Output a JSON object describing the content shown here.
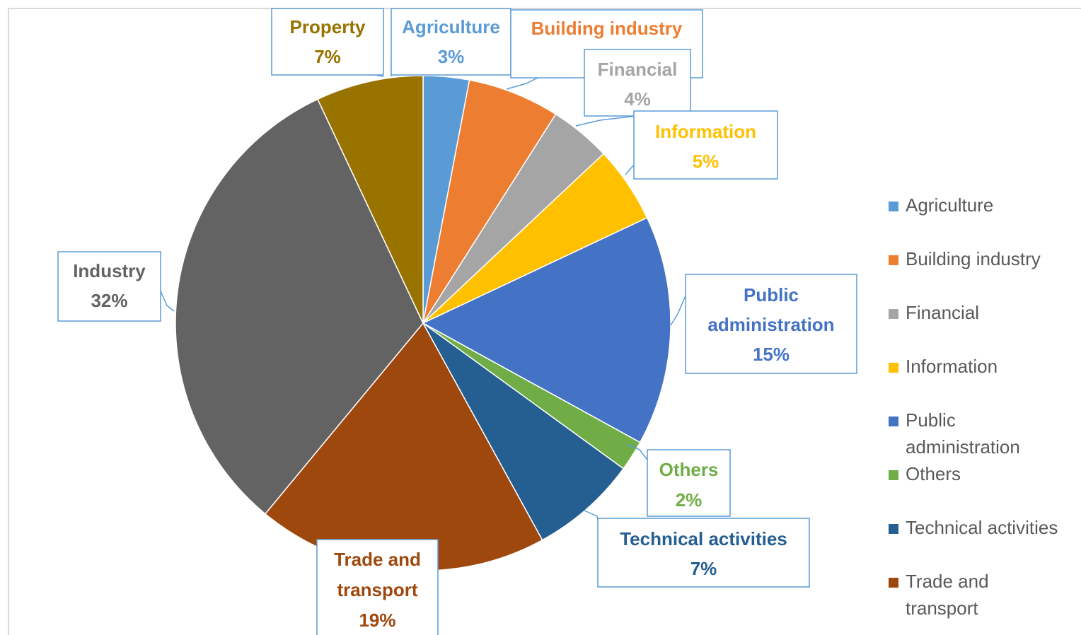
{
  "chart_data": {
    "type": "pie",
    "title": "",
    "start_angle_deg": 0,
    "direction": "clockwise",
    "slices": [
      {
        "label": "Agriculture",
        "value": 3,
        "value_label": "3%",
        "color": "#5b9bd5"
      },
      {
        "label": "Building industry",
        "value": 6,
        "value_label": "6%",
        "color": "#ed7d31"
      },
      {
        "label": "Financial",
        "value": 4,
        "value_label": "4%",
        "color": "#a5a5a5"
      },
      {
        "label": "Information",
        "value": 5,
        "value_label": "5%",
        "color": "#ffc000"
      },
      {
        "label": "Public administration",
        "value": 15,
        "value_label": "15%",
        "color": "#4472c4"
      },
      {
        "label": "Others",
        "value": 2,
        "value_label": "2%",
        "color": "#70ad47"
      },
      {
        "label": "Technical activities",
        "value": 7,
        "value_label": "7%",
        "color": "#255e91"
      },
      {
        "label": "Trade and transport",
        "value": 19,
        "value_label": "19%",
        "color": "#9e480e"
      },
      {
        "label": "Industry",
        "value": 32,
        "value_label": "32%",
        "color": "#636363"
      },
      {
        "label": "Property",
        "value": 7,
        "value_label": "7%",
        "color": "#997300"
      }
    ],
    "legend": {
      "position": "right",
      "entries": [
        {
          "lines": [
            "Agriculture"
          ],
          "color": "#5b9bd5"
        },
        {
          "lines": [
            "Building industry"
          ],
          "color": "#ed7d31"
        },
        {
          "lines": [
            "Financial"
          ],
          "color": "#a5a5a5"
        },
        {
          "lines": [
            "Information"
          ],
          "color": "#ffc000"
        },
        {
          "lines": [
            "Public",
            "administration"
          ],
          "color": "#4472c4"
        },
        {
          "lines": [
            "Others"
          ],
          "color": "#70ad47"
        },
        {
          "lines": [
            "Technical activities"
          ],
          "color": "#255e91"
        },
        {
          "lines": [
            "Trade and",
            "transport"
          ],
          "color": "#9e480e"
        }
      ]
    },
    "data_labels": [
      {
        "lines": [
          "Property",
          "7%"
        ],
        "color": "#997300"
      },
      {
        "lines": [
          "Agriculture",
          "3%"
        ],
        "color": "#5b9bd5"
      },
      {
        "lines": [
          "Building  industry",
          "6%"
        ],
        "color": "#ed7d31"
      },
      {
        "lines": [
          "Financial",
          "4%"
        ],
        "color": "#a5a5a5"
      },
      {
        "lines": [
          "Information",
          "5%"
        ],
        "color": "#ffc000"
      },
      {
        "lines": [
          "Public",
          "administration",
          "15%"
        ],
        "color": "#4472c4"
      },
      {
        "lines": [
          "Others",
          "2%"
        ],
        "color": "#70ad47"
      },
      {
        "lines": [
          "Technical  activities",
          "7%"
        ],
        "color": "#255e91"
      },
      {
        "lines": [
          "Trade and",
          "transport",
          "19%"
        ],
        "color": "#9e480e"
      },
      {
        "lines": [
          "Industry",
          "32%"
        ],
        "color": "#636363"
      }
    ]
  }
}
